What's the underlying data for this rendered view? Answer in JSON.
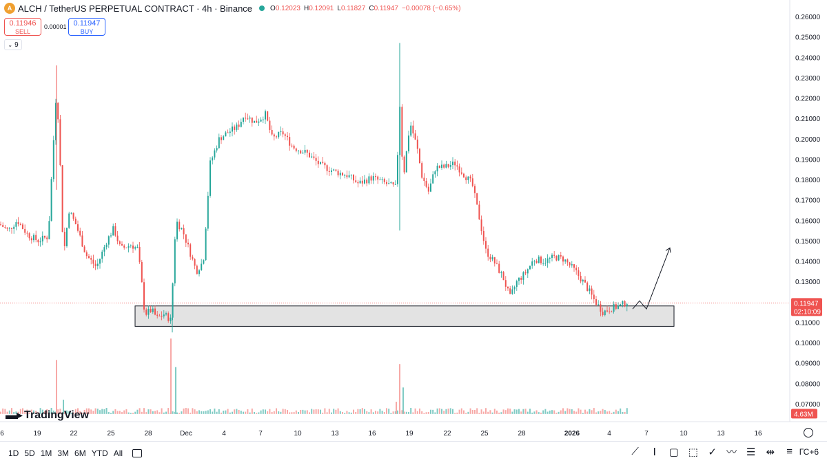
{
  "header": {
    "symbol": "ALCH / TetherUS PERPETUAL CONTRACT · 4h · Binance",
    "o_label": "O",
    "o": "0.12023",
    "h_label": "H",
    "h": "0.12091",
    "l_label": "L",
    "l": "0.11827",
    "c_label": "C",
    "c": "0.11947",
    "change": "−0.00078 (−0.65%)"
  },
  "trade": {
    "sell_price": "0.11946",
    "sell_label": "SELL",
    "spread": "0.00001",
    "buy_price": "0.11947",
    "buy_label": "BUY"
  },
  "indicator_count": "9",
  "brand": "TradingView",
  "price_label": {
    "value": "0.11947",
    "countdown": "02:10:09"
  },
  "volume_label": "4.63M",
  "timeframes": [
    "1D",
    "5D",
    "1M",
    "3M",
    "6M",
    "YTD",
    "All"
  ],
  "timezone": "ГС+6",
  "colors": {
    "up": "#26a69a",
    "down": "#ef5350",
    "up_vol": "#80cbc4",
    "down_vol": "#f7a9a7",
    "zone": "#d9d9d9"
  },
  "chart_data": {
    "type": "candlestick",
    "y_ticks": [
      "0.26000",
      "0.25000",
      "0.24000",
      "0.23000",
      "0.22000",
      "0.21000",
      "0.20000",
      "0.19000",
      "0.18000",
      "0.17000",
      "0.16000",
      "0.15000",
      "0.14000",
      "0.13000",
      "0.12000",
      "0.11000",
      "0.10000",
      "0.09000",
      "0.08000",
      "0.07000"
    ],
    "ylim": [
      0.065,
      0.262
    ],
    "x_ticks": [
      "6",
      "19",
      "22",
      "25",
      "28",
      "Dec",
      "4",
      "7",
      "10",
      "13",
      "16",
      "19",
      "22",
      "25",
      "28",
      "2026",
      "4",
      "7",
      "10",
      "13",
      "16"
    ],
    "current_price": 0.11947,
    "support_zone": [
      0.108,
      0.118
    ],
    "price_path": [
      [
        0,
        0.158
      ],
      [
        12,
        0.155
      ],
      [
        25,
        0.16
      ],
      [
        40,
        0.153
      ],
      [
        55,
        0.15
      ],
      [
        70,
        0.152
      ],
      [
        82,
        0.225
      ],
      [
        86,
        0.2
      ],
      [
        92,
        0.142
      ],
      [
        100,
        0.165
      ],
      [
        110,
        0.158
      ],
      [
        125,
        0.143
      ],
      [
        140,
        0.137
      ],
      [
        155,
        0.15
      ],
      [
        165,
        0.156
      ],
      [
        175,
        0.146
      ],
      [
        190,
        0.148
      ],
      [
        200,
        0.146
      ],
      [
        206,
        0.128
      ],
      [
        210,
        0.114
      ],
      [
        220,
        0.116
      ],
      [
        228,
        0.112
      ],
      [
        238,
        0.114
      ],
      [
        248,
        0.111
      ],
      [
        255,
        0.16
      ],
      [
        265,
        0.155
      ],
      [
        275,
        0.145
      ],
      [
        285,
        0.135
      ],
      [
        295,
        0.14
      ],
      [
        305,
        0.188
      ],
      [
        318,
        0.2
      ],
      [
        330,
        0.203
      ],
      [
        345,
        0.206
      ],
      [
        355,
        0.212
      ],
      [
        370,
        0.208
      ],
      [
        385,
        0.212
      ],
      [
        395,
        0.2
      ],
      [
        410,
        0.203
      ],
      [
        425,
        0.196
      ],
      [
        445,
        0.193
      ],
      [
        465,
        0.187
      ],
      [
        485,
        0.184
      ],
      [
        505,
        0.182
      ],
      [
        520,
        0.178
      ],
      [
        540,
        0.181
      ],
      [
        560,
        0.178
      ],
      [
        575,
        0.176
      ],
      [
        580,
        0.218
      ],
      [
        585,
        0.18
      ],
      [
        595,
        0.208
      ],
      [
        605,
        0.196
      ],
      [
        612,
        0.182
      ],
      [
        622,
        0.174
      ],
      [
        632,
        0.186
      ],
      [
        645,
        0.186
      ],
      [
        660,
        0.188
      ],
      [
        672,
        0.183
      ],
      [
        685,
        0.178
      ],
      [
        695,
        0.162
      ],
      [
        705,
        0.145
      ],
      [
        718,
        0.139
      ],
      [
        730,
        0.132
      ],
      [
        740,
        0.122
      ],
      [
        750,
        0.13
      ],
      [
        762,
        0.134
      ],
      [
        775,
        0.141
      ],
      [
        790,
        0.14
      ],
      [
        805,
        0.142
      ],
      [
        818,
        0.141
      ],
      [
        835,
        0.135
      ],
      [
        850,
        0.128
      ],
      [
        862,
        0.121
      ],
      [
        875,
        0.115
      ],
      [
        888,
        0.117
      ],
      [
        900,
        0.118
      ],
      [
        910,
        0.12
      ]
    ],
    "volume_spikes": [
      [
        82,
        0.0915
      ],
      [
        92,
        0.072
      ],
      [
        248,
        0.102
      ],
      [
        255,
        0.088
      ],
      [
        580,
        0.0895
      ],
      [
        585,
        0.078
      ],
      [
        575,
        0.071
      ]
    ],
    "projection": [
      [
        918,
        0.1165
      ],
      [
        928,
        0.1205
      ],
      [
        938,
        0.1165
      ],
      [
        972,
        0.1465
      ]
    ]
  }
}
